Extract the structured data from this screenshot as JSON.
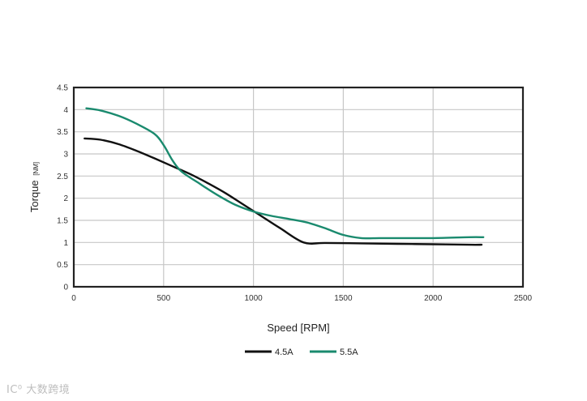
{
  "chart_data": {
    "type": "line",
    "title": "",
    "xlabel": "Speed [RPM]",
    "ylabel": "Torque",
    "ylabel_unit": "[NM]",
    "xlim": [
      0,
      2500
    ],
    "ylim": [
      0,
      4.5
    ],
    "xticks": [
      0,
      500,
      1000,
      1500,
      2000,
      2500
    ],
    "yticks": [
      0,
      0.5,
      1,
      1.5,
      2,
      2.5,
      3,
      3.5,
      4,
      4.5
    ],
    "grid": true,
    "legend_position": "bottom-center",
    "series": [
      {
        "name": "4.5A",
        "color": "#111111",
        "x": [
          60,
          150,
          250,
          350,
          450,
          550,
          650,
          750,
          850,
          950,
          1050,
          1150,
          1280,
          1400,
          1600,
          1800,
          2000,
          2200,
          2270
        ],
        "y": [
          3.35,
          3.32,
          3.22,
          3.07,
          2.9,
          2.72,
          2.54,
          2.33,
          2.1,
          1.84,
          1.58,
          1.32,
          1.0,
          0.99,
          0.98,
          0.97,
          0.96,
          0.95,
          0.95
        ]
      },
      {
        "name": "5.5A",
        "color": "#1a8a6e",
        "x": [
          70,
          150,
          250,
          350,
          450,
          500,
          550,
          600,
          700,
          800,
          900,
          1000,
          1100,
          1200,
          1300,
          1400,
          1500,
          1600,
          1700,
          1800,
          2000,
          2200,
          2280
        ],
        "y": [
          4.03,
          3.98,
          3.86,
          3.68,
          3.45,
          3.2,
          2.85,
          2.6,
          2.33,
          2.07,
          1.85,
          1.7,
          1.6,
          1.53,
          1.45,
          1.32,
          1.17,
          1.1,
          1.1,
          1.1,
          1.1,
          1.12,
          1.12
        ]
      }
    ]
  },
  "watermark": {
    "text": "IC⁰ 大数跨境"
  }
}
